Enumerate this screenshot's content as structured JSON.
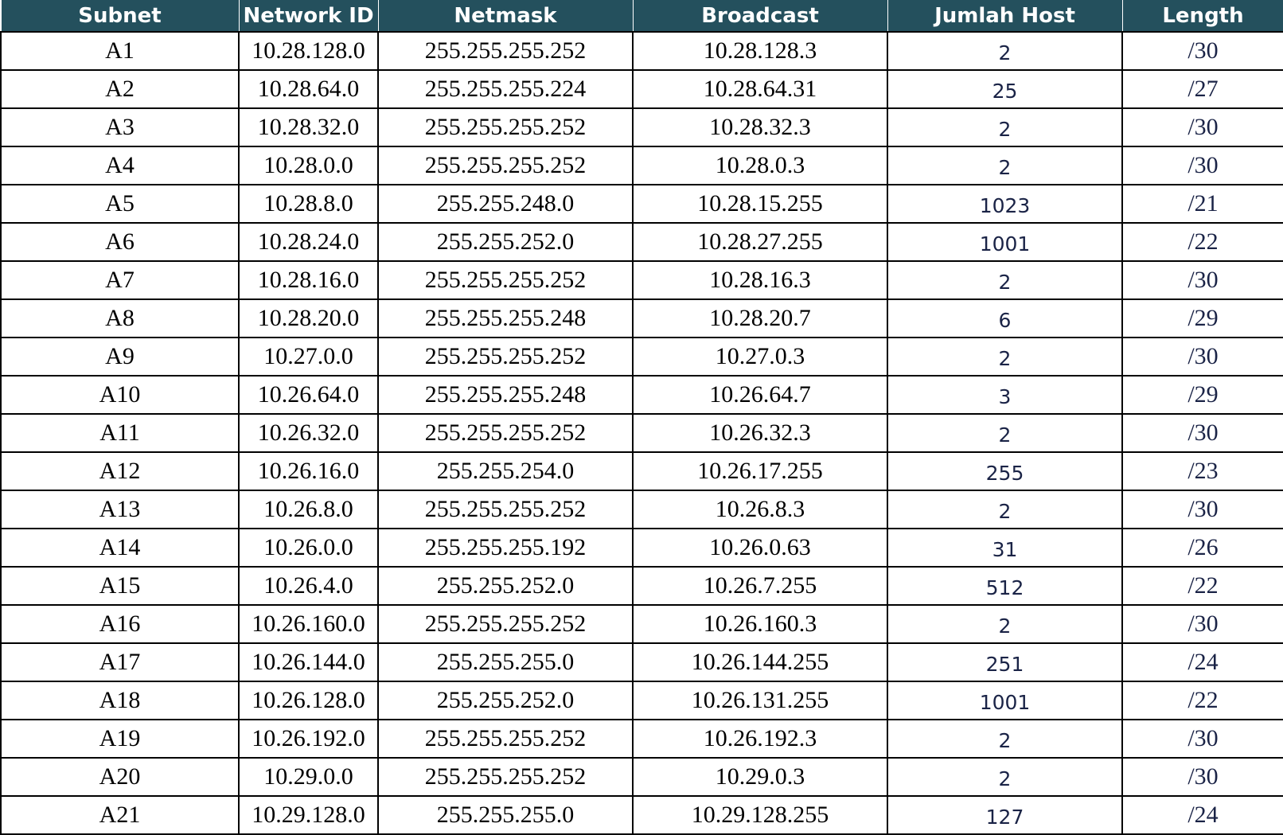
{
  "table": {
    "headers": [
      "Subnet",
      "Network ID",
      "Netmask",
      "Broadcast",
      "Jumlah Host",
      "Length"
    ],
    "rows": [
      [
        "A1",
        "10.28.128.0",
        "255.255.255.252",
        "10.28.128.3",
        "2",
        "/30"
      ],
      [
        "A2",
        "10.28.64.0",
        "255.255.255.224",
        "10.28.64.31",
        "25",
        "/27"
      ],
      [
        "A3",
        "10.28.32.0",
        "255.255.255.252",
        "10.28.32.3",
        "2",
        "/30"
      ],
      [
        "A4",
        "10.28.0.0",
        "255.255.255.252",
        "10.28.0.3",
        "2",
        "/30"
      ],
      [
        "A5",
        "10.28.8.0",
        "255.255.248.0",
        "10.28.15.255",
        "1023",
        "/21"
      ],
      [
        "A6",
        "10.28.24.0",
        "255.255.252.0",
        "10.28.27.255",
        "1001",
        "/22"
      ],
      [
        "A7",
        "10.28.16.0",
        "255.255.255.252",
        "10.28.16.3",
        "2",
        "/30"
      ],
      [
        "A8",
        "10.28.20.0",
        "255.255.255.248",
        "10.28.20.7",
        "6",
        "/29"
      ],
      [
        "A9",
        "10.27.0.0",
        "255.255.255.252",
        "10.27.0.3",
        "2",
        "/30"
      ],
      [
        "A10",
        "10.26.64.0",
        "255.255.255.248",
        "10.26.64.7",
        "3",
        "/29"
      ],
      [
        "A11",
        "10.26.32.0",
        "255.255.255.252",
        "10.26.32.3",
        "2",
        "/30"
      ],
      [
        "A12",
        "10.26.16.0",
        "255.255.254.0",
        "10.26.17.255",
        "255",
        "/23"
      ],
      [
        "A13",
        "10.26.8.0",
        "255.255.255.252",
        "10.26.8.3",
        "2",
        "/30"
      ],
      [
        "A14",
        "10.26.0.0",
        "255.255.255.192",
        "10.26.0.63",
        "31",
        "/26"
      ],
      [
        "A15",
        "10.26.4.0",
        "255.255.252.0",
        "10.26.7.255",
        "512",
        "/22"
      ],
      [
        "A16",
        "10.26.160.0",
        "255.255.255.252",
        "10.26.160.3",
        "2",
        "/30"
      ],
      [
        "A17",
        "10.26.144.0",
        "255.255.255.0",
        "10.26.144.255",
        "251",
        "/24"
      ],
      [
        "A18",
        "10.26.128.0",
        "255.255.252.0",
        "10.26.131.255",
        "1001",
        "/22"
      ],
      [
        "A19",
        "10.26.192.0",
        "255.255.255.252",
        "10.26.192.3",
        "2",
        "/30"
      ],
      [
        "A20",
        "10.29.0.0",
        "255.255.255.252",
        "10.29.0.3",
        "2",
        "/30"
      ],
      [
        "A21",
        "10.29.128.0",
        "255.255.255.0",
        "10.29.128.255",
        "127",
        "/24"
      ]
    ]
  },
  "colors": {
    "header_bg": "#24505d",
    "header_text": "#ffffff",
    "grid": "#000000",
    "host_text": "#1a2346"
  }
}
